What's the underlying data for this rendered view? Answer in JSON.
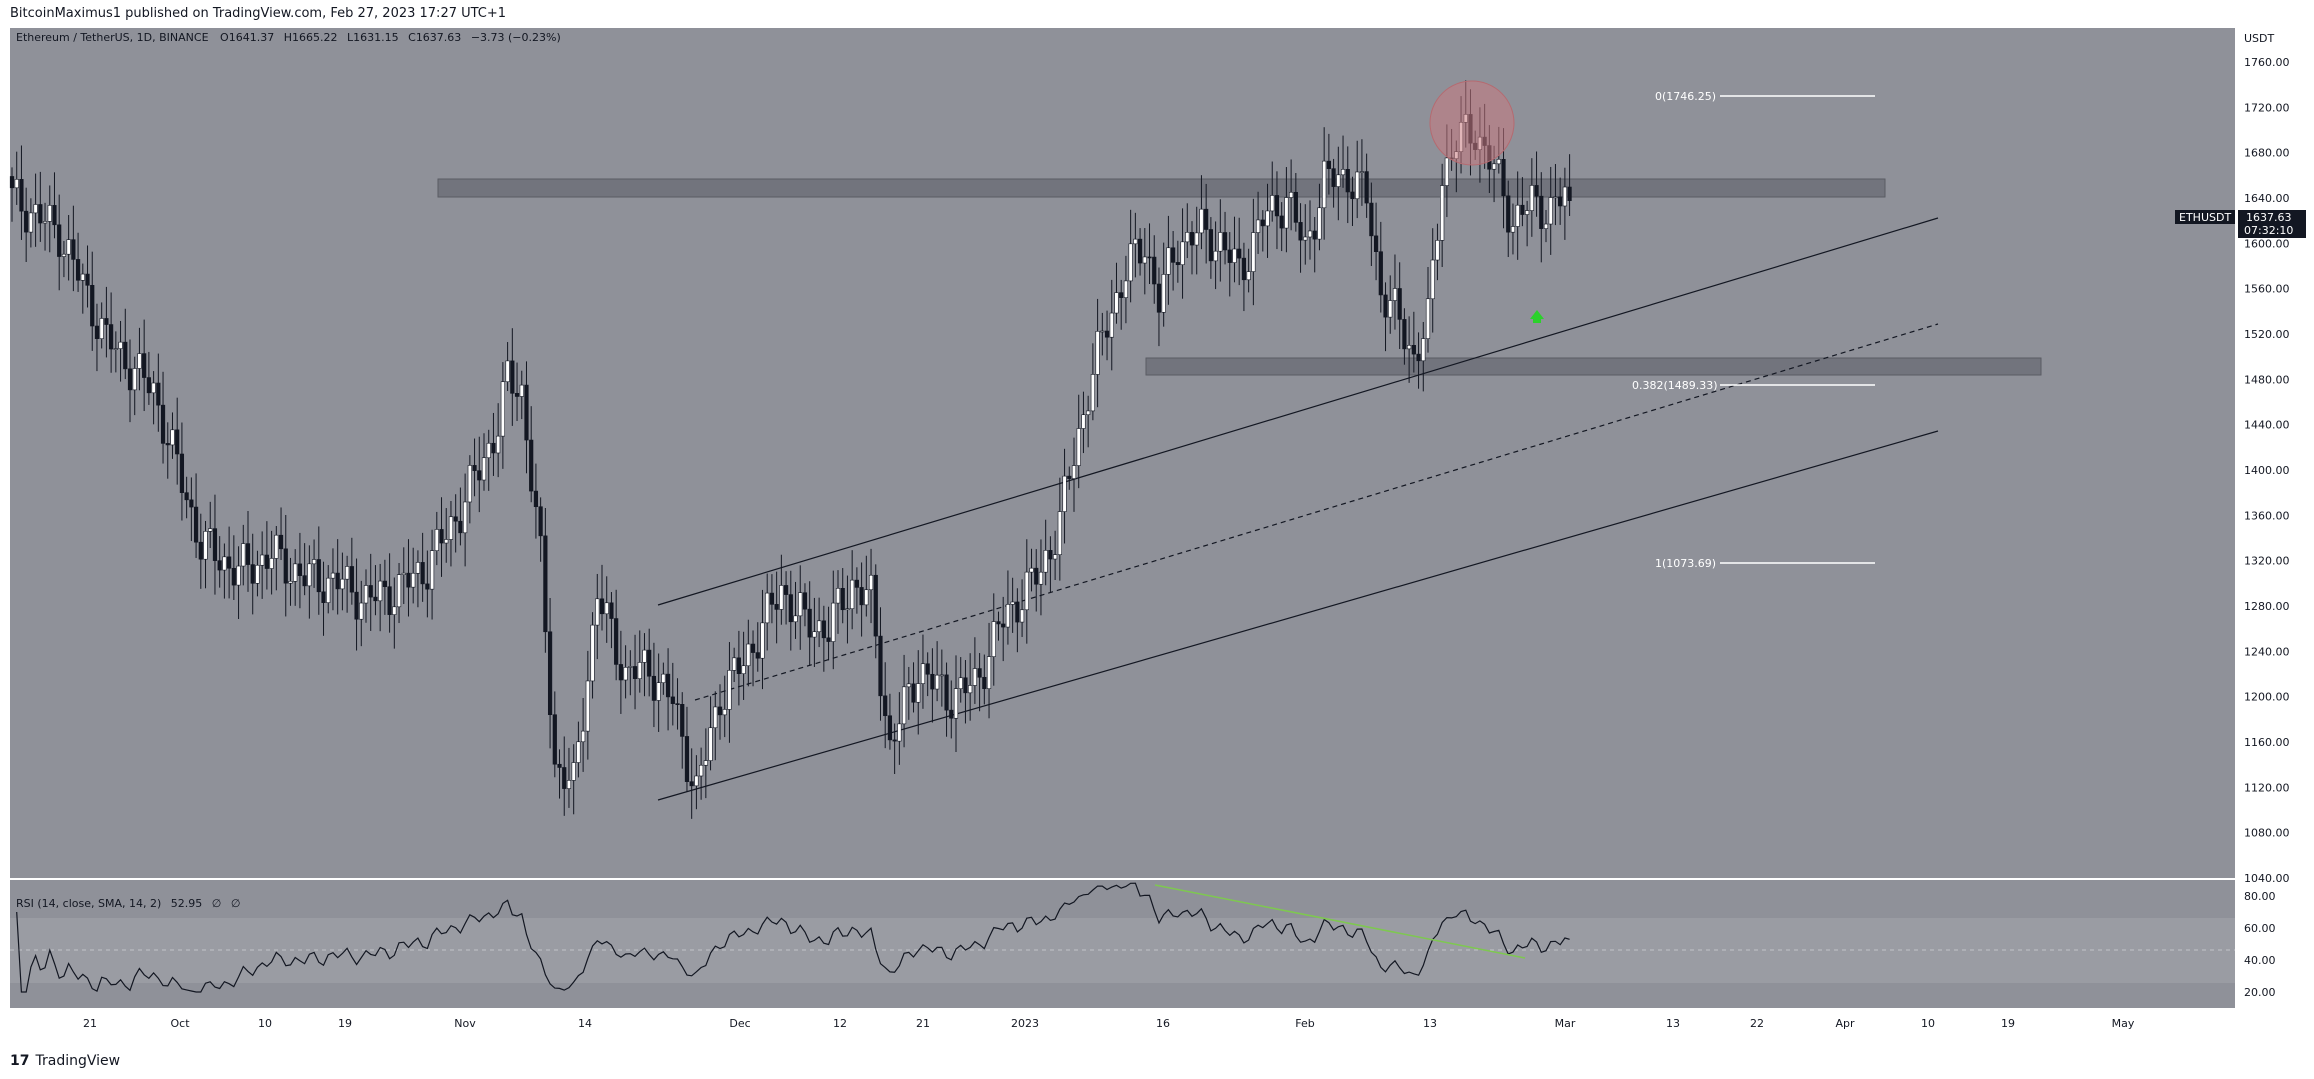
{
  "header": {
    "publisher": "BitcoinMaximus1 published on TradingView.com, Feb 27, 2023 17:27 UTC+1"
  },
  "footer": {
    "logo": "17",
    "brand": "TradingView"
  },
  "legend": {
    "symbol": "Ethereum / TetherUS, 1D, BINANCE",
    "o_label": "O",
    "o": "1641.37",
    "h_label": "H",
    "h": "1665.22",
    "l_label": "L",
    "l": "1631.15",
    "c_label": "C",
    "c": "1637.63",
    "change": "−3.73 (−0.23%)"
  },
  "price_axis": {
    "currency": "USDT",
    "ticks": [
      "1760.00",
      "1720.00",
      "1680.00",
      "1640.00",
      "1600.00",
      "1560.00",
      "1520.00",
      "1480.00",
      "1440.00",
      "1400.00",
      "1360.00",
      "1320.00",
      "1280.00",
      "1240.00",
      "1200.00",
      "1160.00",
      "1120.00",
      "1080.00",
      "1040.00"
    ]
  },
  "price_tag": {
    "symbol": "ETHUSDT",
    "price": "1637.63",
    "countdown": "07:32:10"
  },
  "time_axis": {
    "ticks": [
      "21",
      "Oct",
      "10",
      "19",
      "Nov",
      "14",
      "Dec",
      "12",
      "21",
      "2023",
      "16",
      "Feb",
      "13",
      "Mar",
      "13",
      "22",
      "Apr",
      "10",
      "19",
      "May"
    ]
  },
  "fib": {
    "level0": "0(1746.25)",
    "level382": "0.382(1489.33)",
    "level1": "1(1073.69)"
  },
  "rsi": {
    "legend": "RSI (14, close, SMA, 14, 2)",
    "value": "52.95",
    "na1": "∅",
    "na2": "∅",
    "ticks": [
      "80.00",
      "60.00",
      "40.00",
      "20.00"
    ]
  },
  "colors": {
    "background": "#8f9199",
    "up_candle": "#ffffff",
    "down_candle": "#131722",
    "rsi_band": "#9a9ca3",
    "divergence": "#7ec850",
    "circle": "#c97a80",
    "arrow": "#2bd12b"
  },
  "chart_data": {
    "type": "candlestick",
    "title": "Ethereum / TetherUS, 1D, BINANCE",
    "ylabel": "USDT",
    "ylim": [
      1040,
      1790
    ],
    "price_path": [
      [
        0,
        1640
      ],
      [
        10,
        1610
      ],
      [
        20,
        1515
      ],
      [
        30,
        1470
      ],
      [
        40,
        1335
      ],
      [
        48,
        1310
      ],
      [
        55,
        1325
      ],
      [
        62,
        1305
      ],
      [
        70,
        1300
      ],
      [
        75,
        1285
      ],
      [
        82,
        1295
      ],
      [
        88,
        1315
      ],
      [
        95,
        1365
      ],
      [
        100,
        1410
      ],
      [
        103,
        1440
      ],
      [
        105,
        1480
      ],
      [
        108,
        1470
      ],
      [
        112,
        1320
      ],
      [
        115,
        1140
      ],
      [
        119,
        1120
      ],
      [
        124,
        1290
      ],
      [
        130,
        1220
      ],
      [
        135,
        1225
      ],
      [
        140,
        1195
      ],
      [
        145,
        1115
      ],
      [
        150,
        1200
      ],
      [
        155,
        1230
      ],
      [
        160,
        1270
      ],
      [
        163,
        1295
      ],
      [
        168,
        1265
      ],
      [
        173,
        1260
      ],
      [
        178,
        1300
      ],
      [
        182,
        1285
      ],
      [
        186,
        1155
      ],
      [
        192,
        1225
      ],
      [
        198,
        1200
      ],
      [
        204,
        1210
      ],
      [
        209,
        1260
      ],
      [
        213,
        1285
      ],
      [
        218,
        1310
      ],
      [
        222,
        1355
      ],
      [
        228,
        1470
      ],
      [
        232,
        1530
      ],
      [
        236,
        1575
      ],
      [
        240,
        1600
      ],
      [
        243,
        1550
      ],
      [
        247,
        1600
      ],
      [
        252,
        1610
      ],
      [
        256,
        1600
      ],
      [
        260,
        1575
      ],
      [
        265,
        1620
      ],
      [
        270,
        1640
      ],
      [
        274,
        1595
      ],
      [
        278,
        1655
      ],
      [
        283,
        1660
      ],
      [
        287,
        1640
      ],
      [
        290,
        1560
      ],
      [
        294,
        1530
      ],
      [
        297,
        1500
      ],
      [
        300,
        1530
      ],
      [
        303,
        1660
      ],
      [
        306,
        1690
      ],
      [
        310,
        1700
      ],
      [
        314,
        1665
      ],
      [
        318,
        1620
      ],
      [
        322,
        1635
      ],
      [
        326,
        1630
      ],
      [
        330,
        1646
      ]
    ],
    "fibonacci": [
      {
        "level": "0",
        "price": 1746.25
      },
      {
        "level": "0.382",
        "price": 1489.33
      },
      {
        "level": "1",
        "price": 1073.69
      }
    ],
    "zones": [
      {
        "name": "resistance",
        "from": 1655,
        "to": 1672
      },
      {
        "name": "support",
        "from": 1490,
        "to": 1508
      }
    ],
    "rsi": {
      "ylim": [
        10,
        90
      ],
      "last": 52.95
    }
  }
}
